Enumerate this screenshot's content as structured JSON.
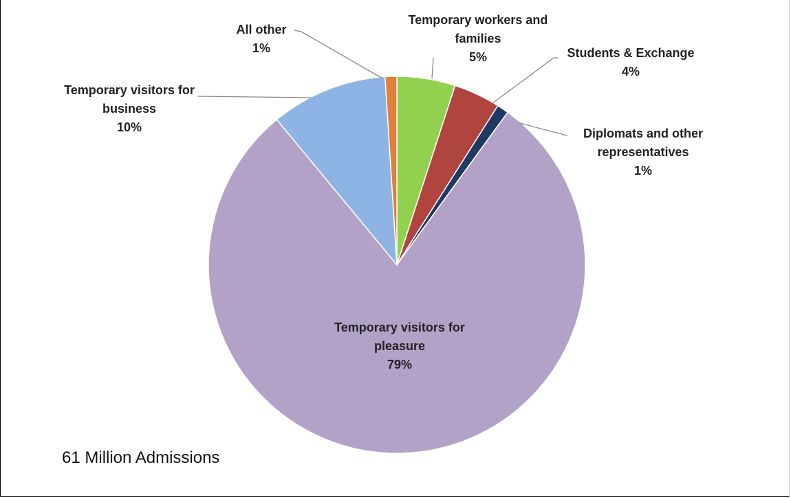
{
  "chart_data": {
    "type": "pie",
    "subtitle": "61 Million Admissions",
    "categories": [
      "Temporary workers and families",
      "Students & Exchange",
      "Diplomats and other representatives",
      "Temporary visitors for pleasure",
      "Temporary visitors for business",
      "All other"
    ],
    "values": [
      5,
      4,
      1,
      79,
      10,
      1
    ],
    "value_labels": [
      "5%",
      "4%",
      "1%",
      "79%",
      "10%",
      "1%"
    ],
    "colors": [
      "#92d050",
      "#b0453f",
      "#1f3864",
      "#b3a2c7",
      "#8eb4e3",
      "#e0803a"
    ]
  }
}
